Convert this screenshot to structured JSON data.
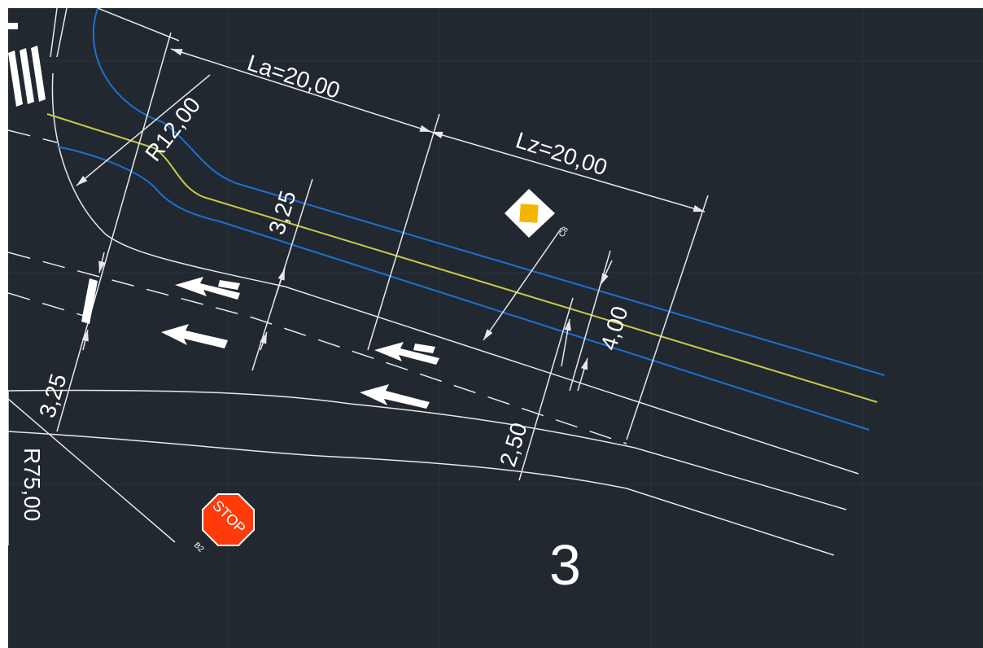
{
  "drawing": {
    "colors": {
      "background": "#212830",
      "grid": "#2c343e",
      "line_white": "#e8e8e8",
      "lane_blue": "#1f6fd1",
      "center_yellow": "#c9c94a",
      "stop_red": "#ff3b0a",
      "priority_yellow": "#f5b400"
    },
    "dimensions": {
      "la": "La=20,00",
      "lz": "Lz=20,00",
      "radius_small": "R12,00",
      "radius_large": "R75,00",
      "lane_width_left": "3,25",
      "lane_width_mid": "3,25",
      "width_right": "4,00",
      "width_taper": "2,50"
    },
    "signs": {
      "stop_text": "STOP",
      "stop_code": "B2",
      "priority_code": "C8"
    },
    "section_number": "3"
  }
}
